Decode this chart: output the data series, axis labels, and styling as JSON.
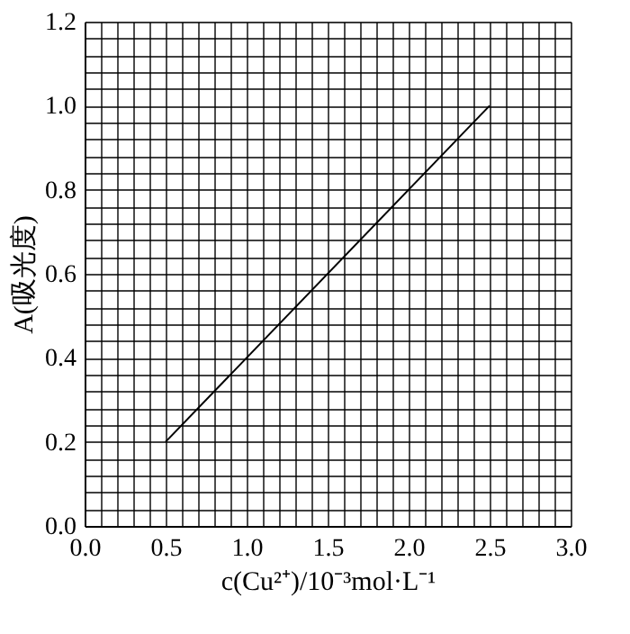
{
  "chart_data": {
    "type": "line",
    "xlabel": "c(Cu²⁺)/10⁻³mol·L⁻¹",
    "ylabel": "A(吸光度)",
    "x": [
      0.5,
      2.5
    ],
    "series": [
      {
        "color": "#000000",
        "values": [
          0.2,
          1.0
        ]
      }
    ],
    "xlim": [
      0,
      3.0
    ],
    "ylim": [
      0,
      1.2
    ],
    "xticks": [
      {
        "value": 0,
        "label": "0.0"
      },
      {
        "value": 0.1,
        "label": null
      },
      {
        "value": 0.2,
        "label": null
      },
      {
        "value": 0.3,
        "label": null
      },
      {
        "value": 0.4,
        "label": null
      },
      {
        "value": 0.5,
        "label": "0.5"
      },
      {
        "value": 0.6,
        "label": null
      },
      {
        "value": 0.7,
        "label": null
      },
      {
        "value": 0.8,
        "label": null
      },
      {
        "value": 0.9,
        "label": null
      },
      {
        "value": 1.0,
        "label": "1.0"
      },
      {
        "value": 1.1,
        "label": null
      },
      {
        "value": 1.2,
        "label": null
      },
      {
        "value": 1.3,
        "label": null
      },
      {
        "value": 1.4,
        "label": null
      },
      {
        "value": 1.5,
        "label": "1.5"
      },
      {
        "value": 1.6,
        "label": null
      },
      {
        "value": 1.7,
        "label": null
      },
      {
        "value": 1.8,
        "label": null
      },
      {
        "value": 1.9,
        "label": null
      },
      {
        "value": 2.0,
        "label": "2.0"
      },
      {
        "value": 2.1,
        "label": null
      },
      {
        "value": 2.2,
        "label": null
      },
      {
        "value": 2.3,
        "label": null
      },
      {
        "value": 2.4,
        "label": null
      },
      {
        "value": 2.5,
        "label": "2.5"
      },
      {
        "value": 2.6,
        "label": null
      },
      {
        "value": 2.7,
        "label": null
      },
      {
        "value": 2.8,
        "label": null
      },
      {
        "value": 2.9,
        "label": null
      },
      {
        "value": 3.0,
        "label": "3.0"
      }
    ],
    "yticks": [
      {
        "value": 0,
        "label": "0.0"
      },
      {
        "value": 0.04,
        "label": null
      },
      {
        "value": 0.08,
        "label": null
      },
      {
        "value": 0.12,
        "label": null
      },
      {
        "value": 0.16,
        "label": null
      },
      {
        "value": 0.2,
        "label": "0.2"
      },
      {
        "value": 0.24,
        "label": null
      },
      {
        "value": 0.28,
        "label": null
      },
      {
        "value": 0.32,
        "label": null
      },
      {
        "value": 0.36,
        "label": null
      },
      {
        "value": 0.4,
        "label": "0.4"
      },
      {
        "value": 0.44,
        "label": null
      },
      {
        "value": 0.48,
        "label": null
      },
      {
        "value": 0.52,
        "label": null
      },
      {
        "value": 0.56,
        "label": null
      },
      {
        "value": 0.6,
        "label": "0.6"
      },
      {
        "value": 0.64,
        "label": null
      },
      {
        "value": 0.68,
        "label": null
      },
      {
        "value": 0.72,
        "label": null
      },
      {
        "value": 0.76,
        "label": null
      },
      {
        "value": 0.8,
        "label": "0.8"
      },
      {
        "value": 0.84,
        "label": null
      },
      {
        "value": 0.88,
        "label": null
      },
      {
        "value": 0.92,
        "label": null
      },
      {
        "value": 0.96,
        "label": null
      },
      {
        "value": 1.0,
        "label": "1.0"
      },
      {
        "value": 1.04,
        "label": null
      },
      {
        "value": 1.08,
        "label": null
      },
      {
        "value": 1.12,
        "label": null
      },
      {
        "value": 1.16,
        "label": null
      },
      {
        "value": 1.2,
        "label": "1.2"
      }
    ],
    "grid": true
  }
}
